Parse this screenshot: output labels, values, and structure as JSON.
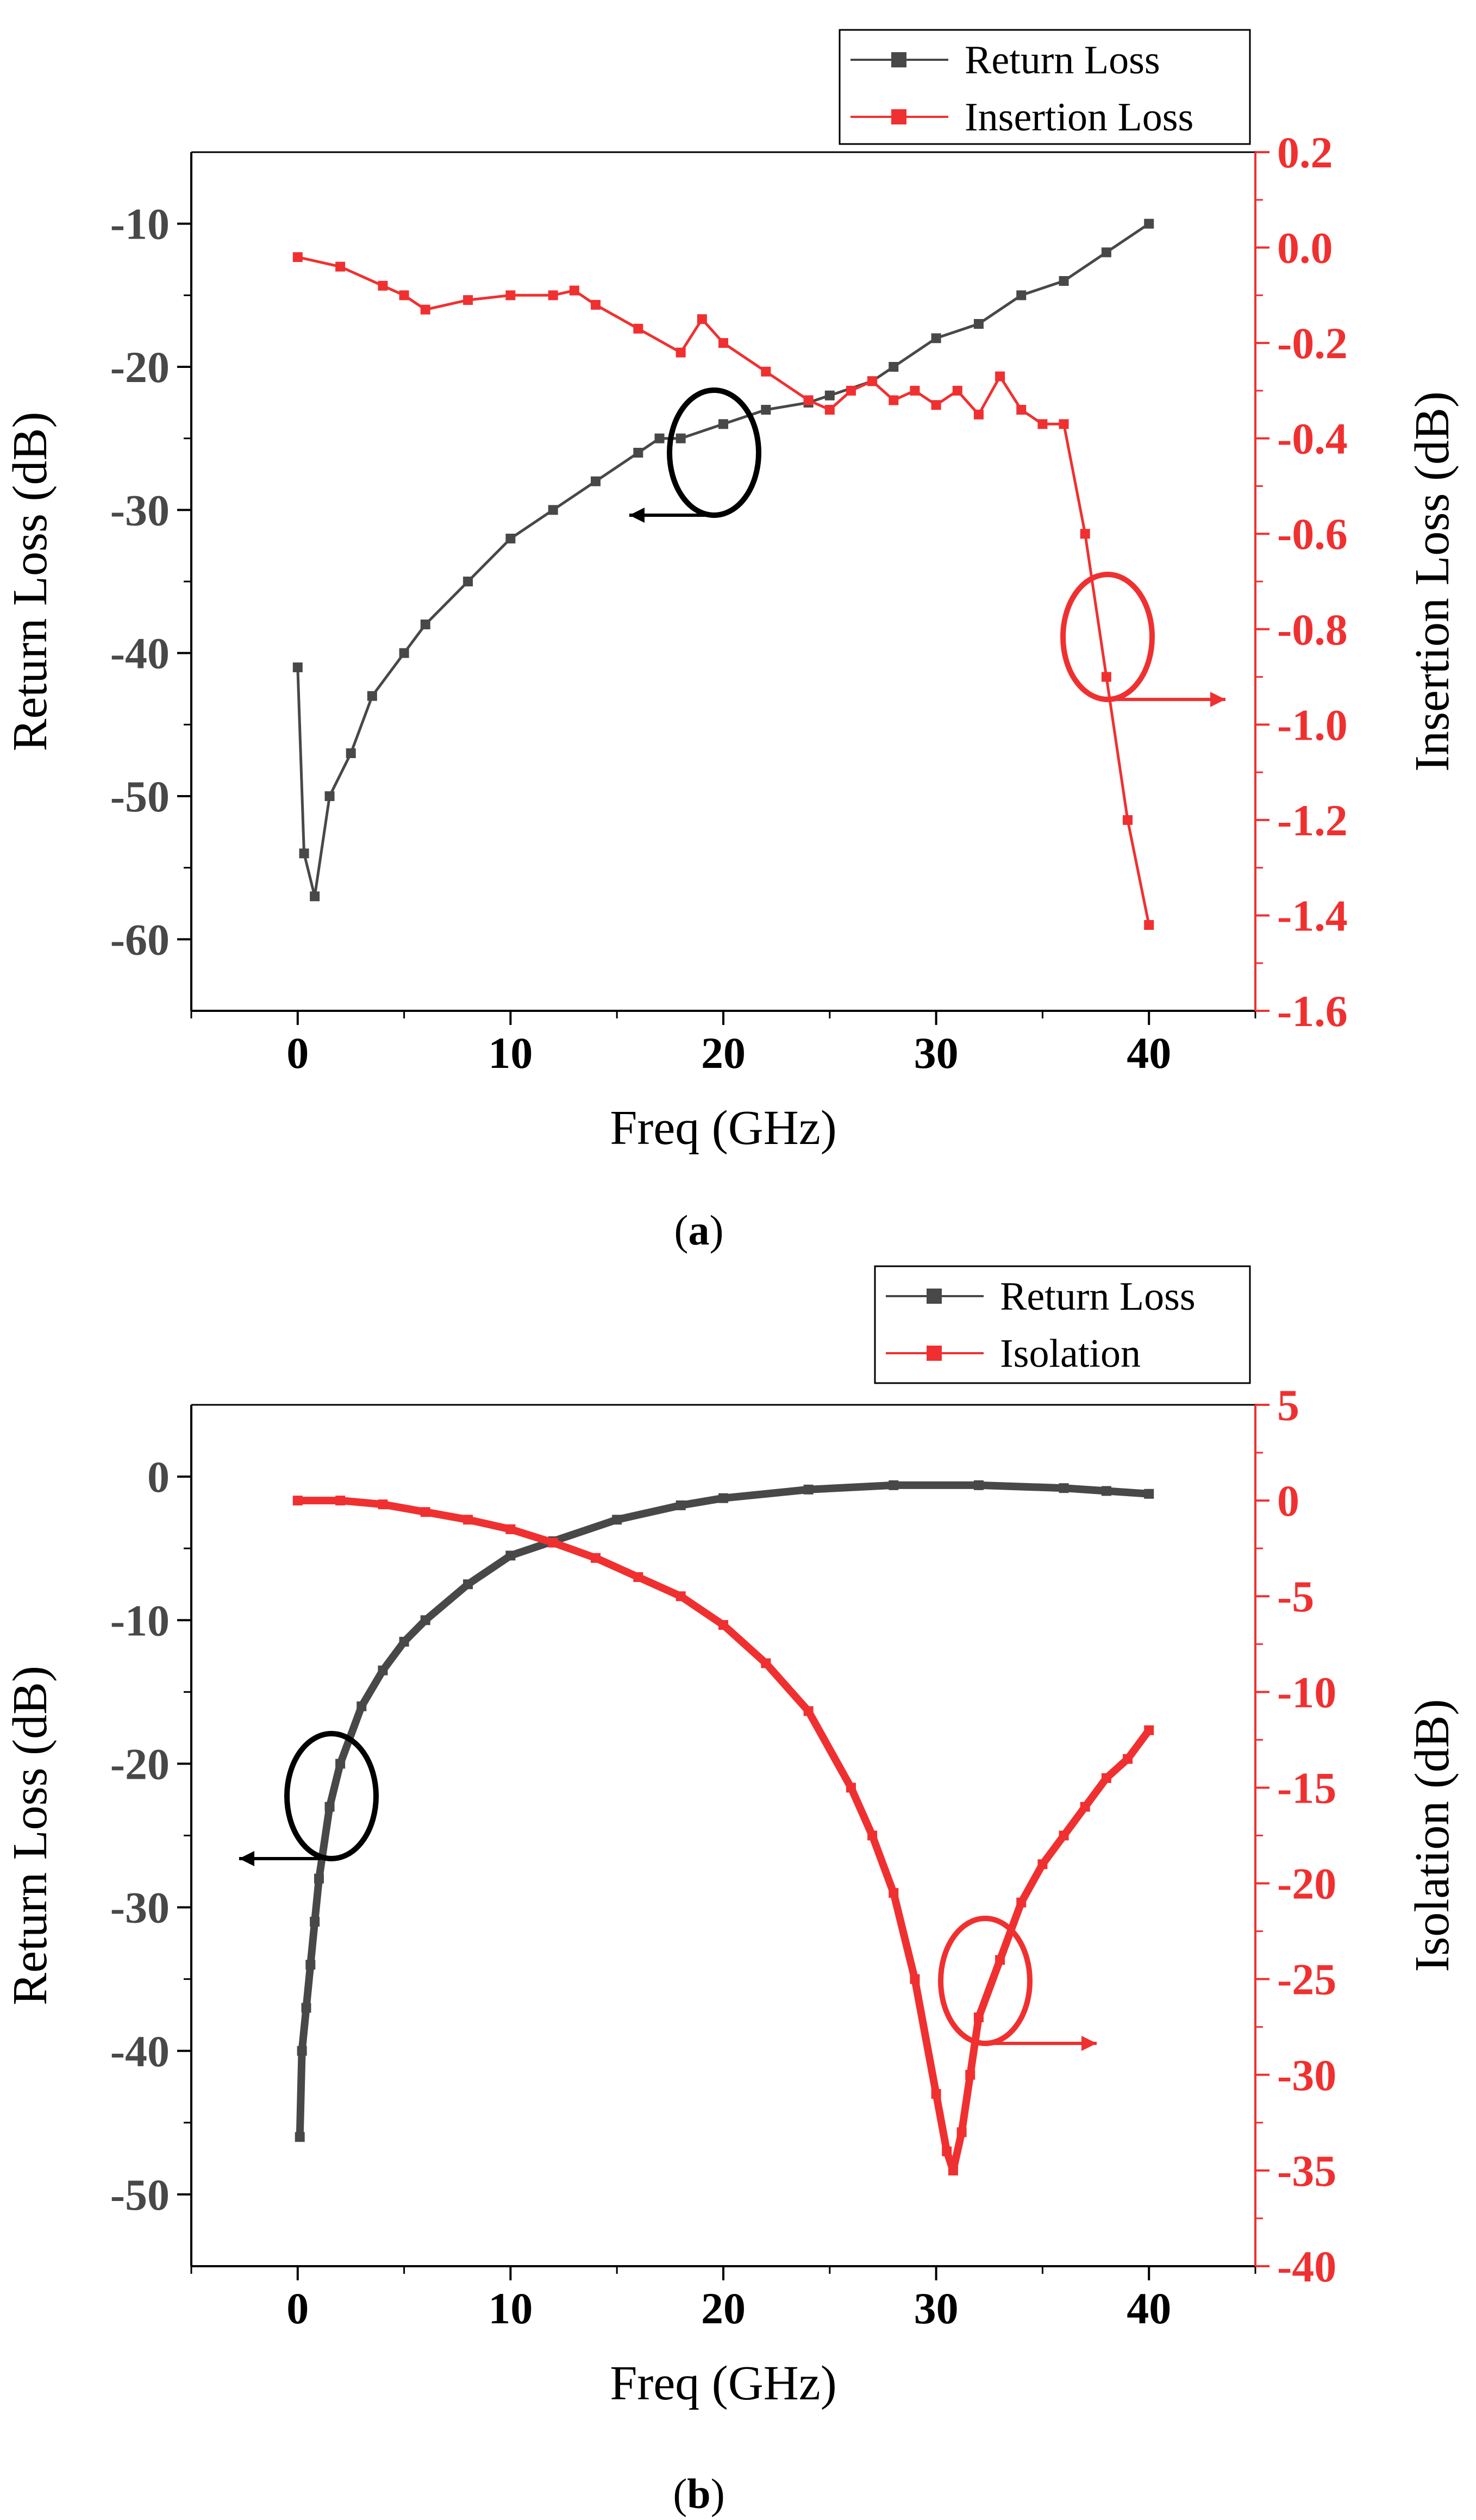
{
  "colors": {
    "return_loss": "#484848",
    "red_series": "#f03030",
    "axis": "#000000",
    "marker_ellipse_black": "#000000"
  },
  "chart_data": [
    {
      "type": "line",
      "caption": "(a)",
      "caption_letter": "a",
      "xlabel": "Freq (GHz)",
      "ylabel_left": "Return Loss (dB)",
      "ylabel_right": "Insertion Loss (dB)",
      "xlim": [
        -5,
        45
      ],
      "ylim_left": [
        -65,
        -5
      ],
      "ylim_right": [
        -1.6,
        0.2
      ],
      "xticks": [
        0,
        10,
        20,
        30,
        40
      ],
      "yticks_left": [
        -10,
        -20,
        -30,
        -40,
        -50,
        -60
      ],
      "yticks_right": [
        0.2,
        0.0,
        -0.2,
        -0.4,
        -0.6,
        -0.8,
        -1.0,
        -1.2,
        -1.4,
        -1.6
      ],
      "xtick_labels": [
        "0",
        "10",
        "20",
        "30",
        "40"
      ],
      "ytick_labels_left": [
        "-10",
        "-20",
        "-30",
        "-40",
        "-50",
        "-60"
      ],
      "ytick_labels_right": [
        "0.2",
        "0.0",
        "-0.2",
        "-0.4",
        "-0.6",
        "-0.8",
        "-1.0",
        "-1.2",
        "-1.4",
        "-1.6"
      ],
      "legend": [
        "Return Loss",
        "Insertion Loss"
      ],
      "legend_position": "top-right",
      "series": [
        {
          "name": "Return Loss",
          "axis": "left",
          "x": [
            0,
            0.3,
            0.8,
            1.5,
            2.5,
            3.5,
            5,
            6,
            8,
            10,
            12,
            14,
            16,
            17,
            18,
            20,
            22,
            24,
            25,
            27,
            28,
            30,
            32,
            34,
            36,
            38,
            40
          ],
          "y": [
            -41,
            -54,
            -57,
            -50,
            -47,
            -43,
            -40,
            -38,
            -35,
            -32,
            -30,
            -28,
            -26,
            -25,
            -25,
            -24,
            -23,
            -22.5,
            -22,
            -21,
            -20,
            -18,
            -17,
            -15,
            -14,
            -12,
            -10
          ]
        },
        {
          "name": "Insertion Loss",
          "axis": "right",
          "x": [
            0,
            2,
            4,
            5,
            6,
            8,
            10,
            12,
            13,
            14,
            16,
            18,
            19,
            20,
            22,
            24,
            25,
            26,
            27,
            28,
            29,
            30,
            31,
            32,
            33,
            34,
            35,
            36,
            37,
            38,
            39,
            40
          ],
          "y": [
            -0.02,
            -0.04,
            -0.08,
            -0.1,
            -0.13,
            -0.11,
            -0.1,
            -0.1,
            -0.09,
            -0.12,
            -0.17,
            -0.22,
            -0.15,
            -0.2,
            -0.26,
            -0.32,
            -0.34,
            -0.3,
            -0.28,
            -0.32,
            -0.3,
            -0.33,
            -0.3,
            -0.35,
            -0.27,
            -0.34,
            -0.37,
            -0.37,
            -0.6,
            -0.9,
            -1.2,
            -1.42
          ]
        }
      ]
    },
    {
      "type": "line",
      "caption": "(b)",
      "caption_letter": "b",
      "xlabel": "Freq (GHz)",
      "ylabel_left": "Return Loss (dB)",
      "ylabel_right": "Isolation (dB)",
      "xlim": [
        -5,
        45
      ],
      "ylim_left": [
        -55,
        5
      ],
      "ylim_right": [
        -40,
        5
      ],
      "xticks": [
        0,
        10,
        20,
        30,
        40
      ],
      "yticks_left": [
        0,
        -10,
        -20,
        -30,
        -40,
        -50
      ],
      "yticks_right": [
        5,
        0,
        -5,
        -10,
        -15,
        -20,
        -25,
        -30,
        -35,
        -40
      ],
      "xtick_labels": [
        "0",
        "10",
        "20",
        "30",
        "40"
      ],
      "ytick_labels_left": [
        "0",
        "-10",
        "-20",
        "-30",
        "-40",
        "-50"
      ],
      "ytick_labels_right": [
        "5",
        "0",
        "-5",
        "-10",
        "-15",
        "-20",
        "-25",
        "-30",
        "-35",
        "-40"
      ],
      "legend": [
        "Return Loss",
        "Isolation"
      ],
      "legend_position": "top-right",
      "series": [
        {
          "name": "Return Loss",
          "axis": "left",
          "x": [
            0.1,
            0.2,
            0.4,
            0.6,
            0.8,
            1,
            1.5,
            2,
            3,
            4,
            5,
            6,
            8,
            10,
            12,
            15,
            18,
            20,
            24,
            28,
            32,
            36,
            38,
            40
          ],
          "y": [
            -46,
            -40,
            -37,
            -34,
            -31,
            -28,
            -23,
            -20,
            -16,
            -13.5,
            -11.5,
            -10,
            -7.5,
            -5.5,
            -4.5,
            -3,
            -2,
            -1.5,
            -0.9,
            -0.6,
            -0.6,
            -0.8,
            -1,
            -1.2
          ]
        },
        {
          "name": "Isolation",
          "axis": "right",
          "x": [
            0,
            2,
            4,
            6,
            8,
            10,
            12,
            14,
            16,
            18,
            20,
            22,
            24,
            26,
            27,
            28,
            29,
            30,
            30.5,
            30.8,
            31.2,
            31.6,
            32,
            33,
            34,
            35,
            36,
            37,
            38,
            39,
            40
          ],
          "y": [
            0,
            0,
            -0.2,
            -0.6,
            -1,
            -1.5,
            -2.2,
            -3,
            -4,
            -5,
            -6.5,
            -8.5,
            -11,
            -15,
            -17.5,
            -20.5,
            -25,
            -31,
            -34,
            -35,
            -33,
            -30,
            -27,
            -24,
            -21,
            -19,
            -17.5,
            -16,
            -14.5,
            -13.5,
            -12
          ]
        }
      ]
    }
  ]
}
